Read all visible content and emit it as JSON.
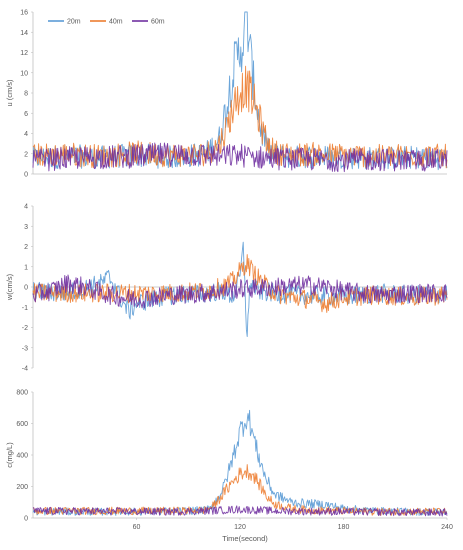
{
  "figure": {
    "x_ticks": [
      "60",
      "120",
      "180",
      "240"
    ],
    "x_label": "Time(second)"
  },
  "legend": [
    {
      "name": "20m",
      "color": "#5B9BD5"
    },
    {
      "name": "40m",
      "color": "#ED7D31"
    },
    {
      "name": "60m",
      "color": "#7030A0"
    }
  ],
  "chart_data": [
    {
      "type": "line",
      "ylabel": "u (cm/s)",
      "xlim": [
        0,
        240
      ],
      "ylim": [
        0,
        16
      ],
      "y_ticks": [
        "0",
        "2",
        "4",
        "6",
        "8",
        "10",
        "12",
        "14",
        "16"
      ],
      "legend_position": "top-left",
      "series": [
        {
          "name": "20m",
          "x": [
            0,
            20,
            40,
            60,
            80,
            100,
            108,
            112,
            116,
            120,
            122,
            124,
            126,
            128,
            132,
            136,
            140,
            150,
            160,
            180,
            200,
            220,
            240
          ],
          "y": [
            1.2,
            1.4,
            1.3,
            1.5,
            1.3,
            1.6,
            3.0,
            6.0,
            9.5,
            11.5,
            12.5,
            14.5,
            11.0,
            8.0,
            4.0,
            2.0,
            1.5,
            1.3,
            1.4,
            1.3,
            1.2,
            1.3,
            1.2
          ]
        },
        {
          "name": "40m",
          "x": [
            0,
            20,
            40,
            60,
            80,
            100,
            108,
            112,
            116,
            120,
            124,
            128,
            132,
            136,
            140,
            150,
            160,
            180,
            200,
            220,
            240
          ],
          "y": [
            1.5,
            1.6,
            1.4,
            1.7,
            1.5,
            1.6,
            2.5,
            4.0,
            6.0,
            7.5,
            8.0,
            6.5,
            4.5,
            2.5,
            1.8,
            1.5,
            1.6,
            1.5,
            1.4,
            1.5,
            1.4
          ]
        },
        {
          "name": "60m",
          "x": [
            0,
            20,
            40,
            60,
            80,
            100,
            110,
            120,
            130,
            140,
            160,
            180,
            200,
            220,
            240
          ],
          "y": [
            1.0,
            1.2,
            1.3,
            1.4,
            1.6,
            1.5,
            1.4,
            1.5,
            1.3,
            1.2,
            1.1,
            1.0,
            1.1,
            1.0,
            1.1
          ]
        }
      ]
    },
    {
      "type": "line",
      "ylabel": "w(cm/s)",
      "xlim": [
        0,
        240
      ],
      "ylim": [
        -4,
        4
      ],
      "y_ticks": [
        "-4",
        "-3",
        "-2",
        "-1",
        "0",
        "1",
        "2",
        "3",
        "4"
      ],
      "series": [
        {
          "name": "20m",
          "x": [
            0,
            20,
            40,
            44,
            48,
            52,
            56,
            60,
            70,
            80,
            100,
            110,
            116,
            120,
            122,
            124,
            126,
            130,
            140,
            160,
            180,
            200,
            220,
            240
          ],
          "y": [
            -0.2,
            -0.3,
            0.2,
            0.5,
            0.0,
            -0.8,
            -1.2,
            -0.8,
            -0.6,
            -0.4,
            -0.3,
            -0.2,
            -0.5,
            0.5,
            2.0,
            -2.5,
            0.3,
            -0.2,
            -0.3,
            -0.4,
            -0.5,
            -0.3,
            -0.4,
            -0.3
          ]
        },
        {
          "name": "40m",
          "x": [
            0,
            20,
            40,
            60,
            80,
            100,
            110,
            116,
            120,
            124,
            128,
            132,
            136,
            140,
            150,
            160,
            170,
            180,
            200,
            220,
            240
          ],
          "y": [
            -0.3,
            -0.3,
            -0.3,
            -0.3,
            -0.3,
            -0.2,
            0.0,
            0.3,
            0.8,
            1.2,
            0.7,
            0.3,
            0.0,
            -0.3,
            -0.5,
            -0.6,
            -0.8,
            -0.5,
            -0.4,
            -0.5,
            -0.4
          ]
        },
        {
          "name": "60m",
          "x": [
            0,
            10,
            20,
            30,
            40,
            50,
            60,
            70,
            80,
            100,
            120,
            140,
            160,
            170,
            180,
            200,
            220,
            240
          ],
          "y": [
            -0.4,
            -0.2,
            0.2,
            0.0,
            -0.3,
            -0.5,
            -0.6,
            -0.5,
            -0.4,
            -0.3,
            -0.1,
            0.0,
            0.1,
            0.0,
            -0.2,
            -0.4,
            -0.3,
            -0.3
          ]
        }
      ]
    },
    {
      "type": "line",
      "ylabel": "c(mg/L)",
      "xlim": [
        0,
        240
      ],
      "ylim": [
        0,
        800
      ],
      "y_ticks": [
        "0",
        "200",
        "400",
        "600",
        "800"
      ],
      "series": [
        {
          "name": "20m",
          "x": [
            0,
            40,
            80,
            100,
            105,
            110,
            115,
            120,
            124,
            126,
            130,
            135,
            140,
            150,
            160,
            170,
            180,
            200,
            220,
            240
          ],
          "y": [
            40,
            40,
            42,
            50,
            90,
            180,
            350,
            550,
            650,
            600,
            420,
            250,
            150,
            100,
            90,
            85,
            60,
            45,
            40,
            38
          ]
        },
        {
          "name": "40m",
          "x": [
            0,
            40,
            80,
            100,
            105,
            110,
            115,
            120,
            124,
            128,
            132,
            136,
            140,
            150,
            160,
            180,
            200,
            220,
            240
          ],
          "y": [
            45,
            45,
            45,
            50,
            80,
            150,
            220,
            280,
            300,
            270,
            200,
            130,
            90,
            60,
            50,
            45,
            40,
            42,
            40
          ]
        },
        {
          "name": "60m",
          "x": [
            0,
            40,
            80,
            100,
            110,
            120,
            130,
            140,
            160,
            180,
            200,
            220,
            240
          ],
          "y": [
            45,
            42,
            40,
            45,
            50,
            55,
            50,
            45,
            42,
            40,
            38,
            35,
            35
          ]
        }
      ]
    }
  ]
}
